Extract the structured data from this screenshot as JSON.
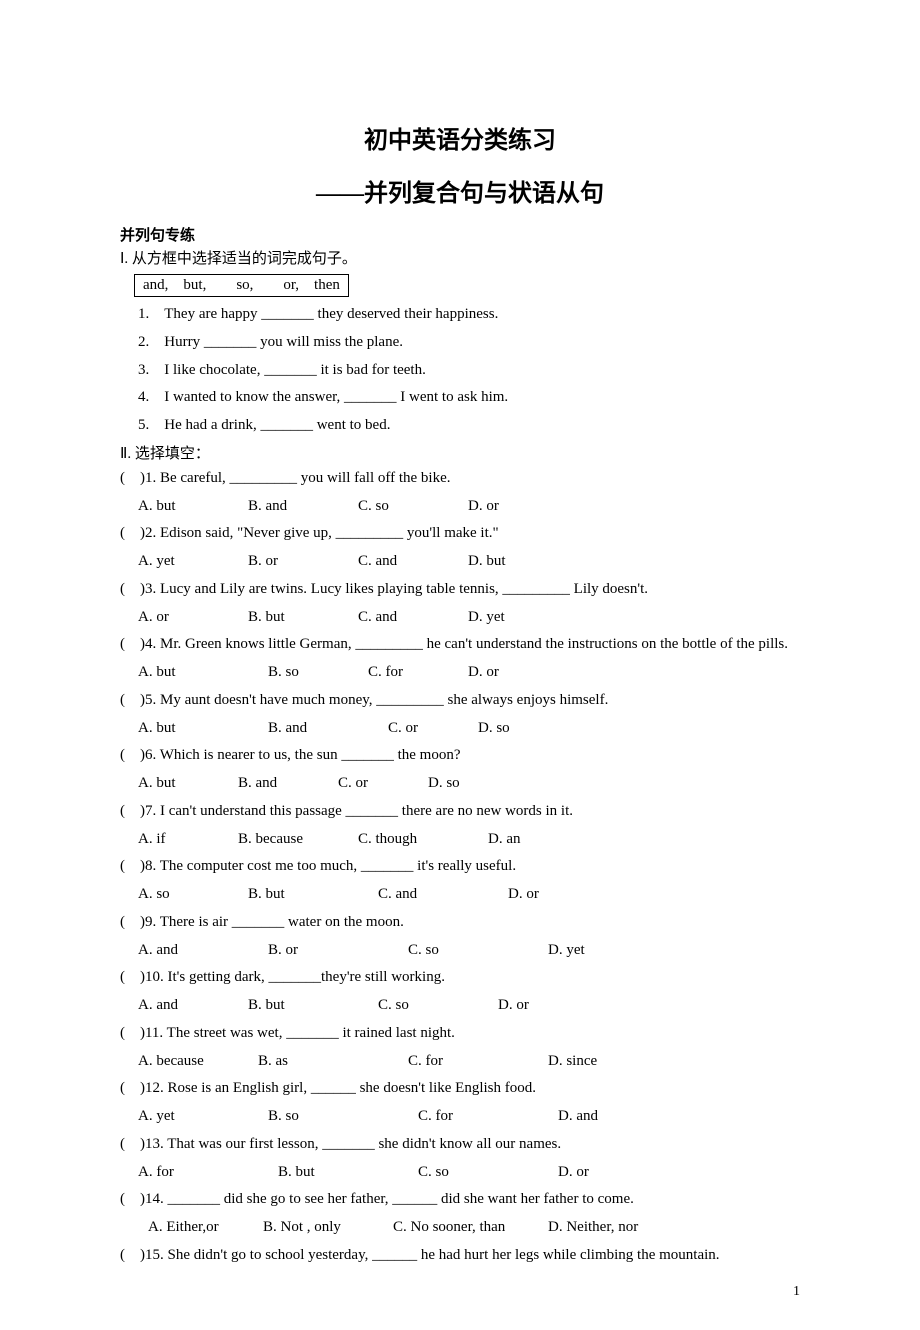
{
  "title": "初中英语分类练习",
  "subtitle": "——并列复合句与状语从句",
  "section1_head": "并列句专练",
  "part1_instr": "Ⅰ. 从方框中选择适当的词完成句子。",
  "wordbox": "and, but,  so,  or, then",
  "fill": [
    "1. They are happy _______ they deserved their happiness.",
    "2. Hurry _______ you will miss the plane.",
    "3. I like chocolate, _______ it is bad for teeth.",
    "4. I wanted to know the answer, _______ I went to ask him.",
    "5. He had a drink, _______ went to bed."
  ],
  "part2_instr": "Ⅱ. 选择填空：",
  "mcq": [
    {
      "q": "( )1. Be careful, _________ you will fall off the bike.",
      "opts": [
        "A. but",
        "B. and",
        "C. so",
        "D. or"
      ],
      "widths": [
        110,
        110,
        110,
        0
      ]
    },
    {
      "q": "( )2. Edison said, \"Never give up, _________ you'll make it.\"",
      "opts": [
        "A. yet",
        "B. or",
        "C. and",
        "D. but"
      ],
      "widths": [
        110,
        110,
        110,
        0
      ]
    },
    {
      "q": "( )3. Lucy and Lily are twins. Lucy likes playing table tennis, _________ Lily doesn't.",
      "opts": [
        "A. or",
        "B. but",
        "C. and",
        "D. yet"
      ],
      "widths": [
        110,
        110,
        110,
        0
      ]
    },
    {
      "q": "( )4. Mr. Green knows little German, _________ he can't understand the instructions on the bottle of the pills.",
      "justify": true,
      "opts": [
        "A. but",
        "B. so",
        "C. for",
        "D. or"
      ],
      "widths": [
        130,
        100,
        100,
        0
      ]
    },
    {
      "q": "( )5. My aunt doesn't have much money, _________ she always enjoys himself.",
      "opts": [
        "A. but",
        "B. and",
        "C. or",
        "D. so"
      ],
      "widths": [
        130,
        120,
        90,
        0
      ]
    },
    {
      "q": "( )6. Which is nearer to us, the sun _______ the moon?",
      "opts": [
        "A. but",
        "B. and",
        "C. or",
        "D. so"
      ],
      "widths": [
        100,
        100,
        90,
        0
      ]
    },
    {
      "q": "( )7. I can't understand this passage _______ there are no new words in it.",
      "opts": [
        "A. if",
        "B. because",
        "C. though",
        "D. an"
      ],
      "widths": [
        100,
        120,
        130,
        0
      ]
    },
    {
      "q": "( )8. The computer cost me too much, _______ it's really useful.",
      "opts": [
        "A. so",
        "B. but",
        "C. and",
        "D. or"
      ],
      "widths": [
        110,
        130,
        130,
        0
      ]
    },
    {
      "q": "( )9. There is air _______ water on the moon.",
      "opts": [
        "A. and",
        "B. or",
        "C. so",
        "D. yet"
      ],
      "widths": [
        130,
        140,
        140,
        0
      ]
    },
    {
      "q": "( )10. It's getting dark, _______they're still working.",
      "opts": [
        "A. and",
        "B. but",
        "C. so",
        "D. or"
      ],
      "widths": [
        110,
        130,
        120,
        0
      ]
    },
    {
      "q": "( )11. The street was wet, _______ it rained last night.",
      "opts": [
        "A. because",
        "B. as",
        "C. for",
        "D. since"
      ],
      "widths": [
        120,
        150,
        140,
        0
      ]
    },
    {
      "q": "( )12. Rose is an English girl, ______ she doesn't like English food.",
      "opts": [
        "A. yet",
        "B. so",
        "C. for",
        "D. and"
      ],
      "widths": [
        130,
        150,
        140,
        0
      ]
    },
    {
      "q": "( )13. That was our first lesson, _______ she didn't know all our names.",
      "opts": [
        "A. for",
        "B. but",
        "C. so",
        "D. or"
      ],
      "widths": [
        140,
        140,
        140,
        0
      ]
    },
    {
      "q": "( )14. _______ did she go to see her father, ______ did she want her father to come.",
      "opts": [
        "A. Either,or",
        "B. Not , only",
        "C. No sooner, than",
        "D. Neither, nor"
      ],
      "widths": [
        115,
        130,
        155,
        0
      ],
      "opt_indent": 28
    },
    {
      "q": "( )15. She didn't go to school yesterday, ______ he had hurt her legs while climbing the mountain.",
      "justify": true,
      "opts": [],
      "widths": []
    }
  ],
  "pagenum": "1"
}
